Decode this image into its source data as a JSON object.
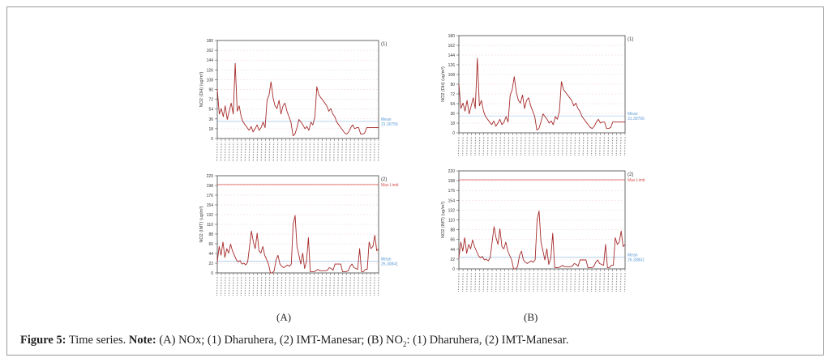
{
  "figure": {
    "label_a": "(A)",
    "label_b": "(B)",
    "caption_label": "Figure 5:",
    "caption_text": " Time series. ",
    "caption_note_label": "Note:",
    "caption_note_1": " (A) NOx; (1) Dharuhera, (2) IMT-Manesar; (B) NO",
    "caption_sub": "2",
    "caption_note_2": ": (1) Dharuhera, (2) IMT-Manesar."
  },
  "colors": {
    "series": "#a52a2a",
    "mean": "#5b9bd5",
    "max_limit": "#d9534f",
    "grid": "#f2d0d0"
  },
  "chart_data": [
    {
      "id": "A1",
      "type": "line",
      "panel_tag": "(1)",
      "ylabel": "NO2 (DH) (ug/m³)",
      "ylim": [
        0,
        180
      ],
      "yticks": [
        0,
        18,
        36,
        54,
        72,
        90,
        108,
        126,
        144,
        162,
        180
      ],
      "mean": {
        "label": "Mean",
        "value_label": "31.30756",
        "value": 31.30756
      },
      "values": [
        90,
        45,
        55,
        40,
        60,
        35,
        50,
        65,
        45,
        138,
        50,
        60,
        40,
        30,
        25,
        20,
        15,
        22,
        12,
        18,
        25,
        15,
        20,
        30,
        20,
        70,
        80,
        104,
        75,
        60,
        55,
        70,
        45,
        60,
        65,
        50,
        40,
        30,
        5,
        8,
        20,
        35,
        30,
        25,
        18,
        22,
        15,
        30,
        25,
        40,
        95,
        80,
        75,
        70,
        65,
        60,
        50,
        55,
        45,
        40,
        30,
        25,
        20,
        15,
        10,
        8,
        12,
        20,
        25,
        18,
        20,
        20,
        8,
        8,
        10,
        20,
        20,
        20,
        20,
        20,
        20,
        20
      ]
    },
    {
      "id": "A2",
      "type": "line",
      "panel_tag": "(2)",
      "ylabel": "NO2 (IMT) (ug/m³)",
      "ylim": [
        0,
        220
      ],
      "yticks": [
        0,
        22,
        44,
        66,
        88,
        110,
        132,
        154,
        176,
        198,
        220
      ],
      "mean": {
        "label": "Mean",
        "value_label": "26.30841",
        "value": 26.30841
      },
      "max_limit": {
        "label": "Max Limit",
        "value": 200
      },
      "values": [
        25,
        60,
        40,
        70,
        35,
        55,
        45,
        65,
        50,
        40,
        30,
        25,
        28,
        20,
        22,
        18,
        25,
        60,
        95,
        70,
        55,
        90,
        50,
        45,
        60,
        40,
        30,
        20,
        0,
        0,
        5,
        30,
        40,
        20,
        15,
        12,
        15,
        18,
        15,
        20,
        110,
        130,
        60,
        40,
        20,
        45,
        10,
        25,
        80,
        3,
        3,
        3,
        5,
        8,
        5,
        5,
        5,
        5,
        6,
        12,
        10,
        6,
        20,
        20,
        20,
        20,
        3,
        3,
        3,
        5,
        15,
        20,
        12,
        10,
        8,
        55,
        3,
        3,
        8,
        8,
        70,
        55,
        60,
        85,
        50,
        55
      ]
    },
    {
      "id": "B1",
      "type": "line",
      "panel_tag": "(1)",
      "ylabel": "NO2 (DH) (ug/m³)",
      "ylim": [
        0,
        180
      ],
      "yticks": [
        0,
        18,
        36,
        54,
        72,
        90,
        108,
        126,
        144,
        162,
        180
      ],
      "mean": {
        "label": "Mean",
        "value_label": "31.30756",
        "value": 31.30756
      },
      "values": [
        90,
        45,
        55,
        40,
        60,
        35,
        50,
        65,
        45,
        138,
        50,
        60,
        40,
        30,
        25,
        20,
        15,
        22,
        12,
        18,
        25,
        15,
        20,
        30,
        20,
        70,
        80,
        104,
        75,
        60,
        55,
        70,
        45,
        60,
        65,
        50,
        40,
        30,
        5,
        8,
        20,
        35,
        30,
        25,
        18,
        22,
        15,
        30,
        25,
        40,
        95,
        80,
        75,
        70,
        65,
        60,
        50,
        55,
        45,
        40,
        30,
        25,
        20,
        15,
        10,
        8,
        12,
        20,
        25,
        18,
        20,
        20,
        8,
        8,
        10,
        20,
        20,
        20,
        20,
        20,
        20,
        20
      ]
    },
    {
      "id": "B2",
      "type": "line",
      "panel_tag": "(2)",
      "ylabel": "NO2 (IMT) (ug/m³)",
      "ylim": [
        0,
        220
      ],
      "yticks": [
        0,
        22,
        44,
        66,
        88,
        110,
        132,
        154,
        176,
        198,
        220
      ],
      "mean": {
        "label": "Mean",
        "value_label": "26.30841",
        "value": 26.30841
      },
      "max_limit": {
        "label": "Max Limit",
        "value": 200
      },
      "values": [
        25,
        60,
        40,
        70,
        35,
        55,
        45,
        65,
        50,
        40,
        30,
        25,
        28,
        20,
        22,
        18,
        25,
        60,
        95,
        70,
        55,
        90,
        50,
        45,
        60,
        40,
        30,
        20,
        0,
        0,
        5,
        30,
        40,
        20,
        15,
        12,
        15,
        18,
        15,
        20,
        110,
        130,
        60,
        40,
        20,
        45,
        10,
        25,
        80,
        3,
        3,
        3,
        5,
        8,
        5,
        5,
        5,
        5,
        6,
        12,
        10,
        6,
        20,
        20,
        20,
        20,
        3,
        3,
        3,
        5,
        15,
        20,
        12,
        10,
        8,
        55,
        3,
        3,
        8,
        8,
        70,
        55,
        60,
        85,
        50,
        55
      ]
    }
  ]
}
